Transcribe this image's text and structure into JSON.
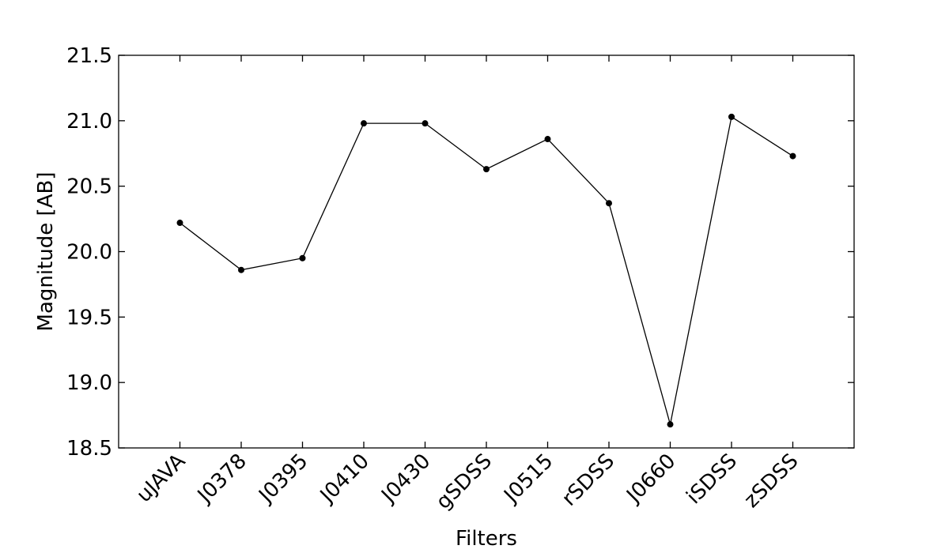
{
  "chart_data": {
    "type": "line",
    "title": "",
    "xlabel": "Filters",
    "ylabel": "Magnitude [AB]",
    "categories": [
      "uJAVA",
      "J0378",
      "J0395",
      "J0410",
      "J0430",
      "gSDSS",
      "J0515",
      "rSDSS",
      "J0660",
      "iSDSS",
      "zSDSS"
    ],
    "series": [
      {
        "values": [
          20.22,
          19.86,
          19.95,
          20.98,
          20.98,
          20.63,
          20.86,
          20.37,
          18.68,
          21.03,
          20.73
        ]
      }
    ],
    "ylim": [
      18.5,
      21.5
    ],
    "yticks": [
      "18.5",
      "19.0",
      "19.5",
      "20.0",
      "20.5",
      "21.0",
      "21.5"
    ],
    "grid": false,
    "colors": {
      "line": "#000000",
      "marker": "#000000"
    }
  }
}
